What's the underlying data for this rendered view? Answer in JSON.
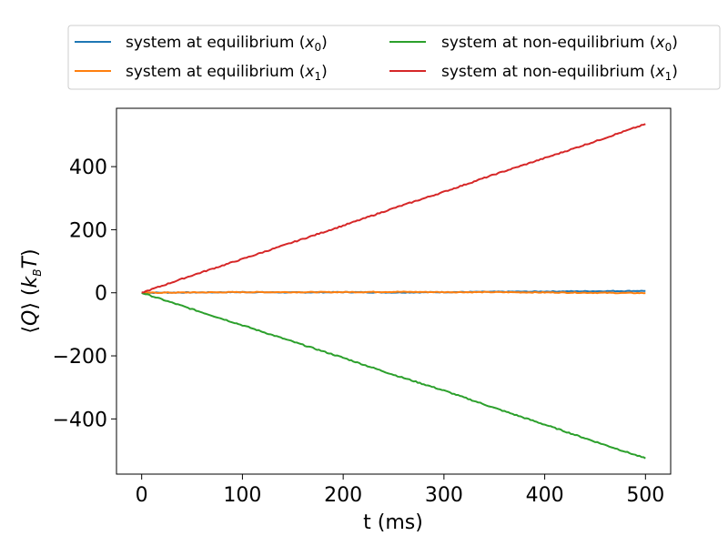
{
  "chart_data": {
    "type": "line",
    "xlabel": "t (ms)",
    "ylabel_parts": [
      "⟨",
      "Q",
      "⟩ (",
      "k",
      "B",
      "T",
      ")"
    ],
    "xlim": [
      -25,
      525
    ],
    "ylim": [
      -575,
      585
    ],
    "xticks": [
      0,
      100,
      200,
      300,
      400,
      500
    ],
    "yticks": [
      -400,
      -200,
      0,
      200,
      400
    ],
    "xtick_labels": [
      "0",
      "100",
      "200",
      "300",
      "400",
      "500"
    ],
    "ytick_labels": [
      "−400",
      "−200",
      "0",
      "200",
      "400"
    ],
    "grid": false,
    "legend_position": "top-center-outside",
    "series": [
      {
        "name_prefix": "system at equilibrium (",
        "name_var": "x",
        "name_sub": "0",
        "name_suffix": ")",
        "color": "#1f77b4",
        "x": [
          0,
          50,
          100,
          150,
          200,
          250,
          300,
          350,
          400,
          450,
          500
        ],
        "y": [
          0,
          1,
          2,
          1,
          2,
          1,
          2,
          3,
          4,
          5,
          6
        ]
      },
      {
        "name_prefix": "system at equilibrium (",
        "name_var": "x",
        "name_sub": "1",
        "name_suffix": ")",
        "color": "#ff7f0e",
        "x": [
          0,
          50,
          100,
          150,
          200,
          250,
          300,
          350,
          400,
          450,
          500
        ],
        "y": [
          0,
          1,
          2,
          2,
          2,
          3,
          2,
          2,
          1,
          0,
          -1
        ]
      },
      {
        "name_prefix": "system at non-equilibrium (",
        "name_var": "x",
        "name_sub": "0",
        "name_suffix": ")",
        "color": "#2ca02c",
        "x": [
          0,
          50,
          100,
          150,
          200,
          250,
          300,
          350,
          400,
          450,
          500
        ],
        "y": [
          0,
          -52,
          -103,
          -155,
          -206,
          -260,
          -310,
          -365,
          -418,
          -472,
          -525
        ]
      },
      {
        "name_prefix": "system at non-equilibrium (",
        "name_var": "x",
        "name_sub": "1",
        "name_suffix": ")",
        "color": "#d62728",
        "x": [
          0,
          50,
          100,
          150,
          200,
          250,
          300,
          350,
          400,
          450,
          500
        ],
        "y": [
          0,
          55,
          107,
          160,
          213,
          268,
          320,
          375,
          427,
          480,
          535
        ]
      }
    ]
  }
}
